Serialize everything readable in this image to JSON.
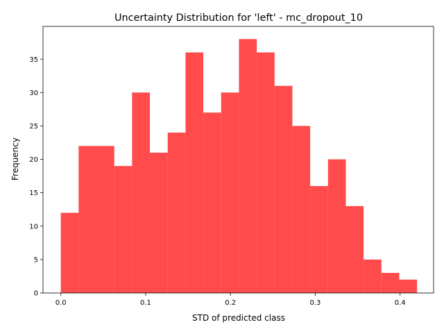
{
  "chart_data": {
    "type": "bar",
    "subtype": "histogram",
    "title": "Uncertainty Distribution for 'left' - mc_dropout_10",
    "xlabel": "STD of predicted class",
    "ylabel": "Frequency",
    "xlim": [
      -0.021,
      0.4395
    ],
    "ylim": [
      0,
      39.9
    ],
    "bin_edges": [
      0.0,
      0.021,
      0.042,
      0.063,
      0.084,
      0.105,
      0.126,
      0.147,
      0.168,
      0.189,
      0.21,
      0.231,
      0.252,
      0.273,
      0.294,
      0.315,
      0.336,
      0.357,
      0.378,
      0.399,
      0.42
    ],
    "values": [
      12,
      22,
      22,
      19,
      30,
      21,
      24,
      36,
      27,
      30,
      38,
      36,
      31,
      25,
      16,
      20,
      13,
      5,
      3,
      2
    ],
    "xticks": [
      0.0,
      0.1,
      0.2,
      0.3,
      0.4
    ],
    "xtick_labels": [
      "0.0",
      "0.1",
      "0.2",
      "0.3",
      "0.4"
    ],
    "yticks": [
      0,
      5,
      10,
      15,
      20,
      25,
      30,
      35
    ],
    "ytick_labels": [
      "0",
      "5",
      "10",
      "15",
      "20",
      "25",
      "30",
      "35"
    ],
    "bar_color": "#ff4b4b",
    "grid": false,
    "legend": "none"
  }
}
